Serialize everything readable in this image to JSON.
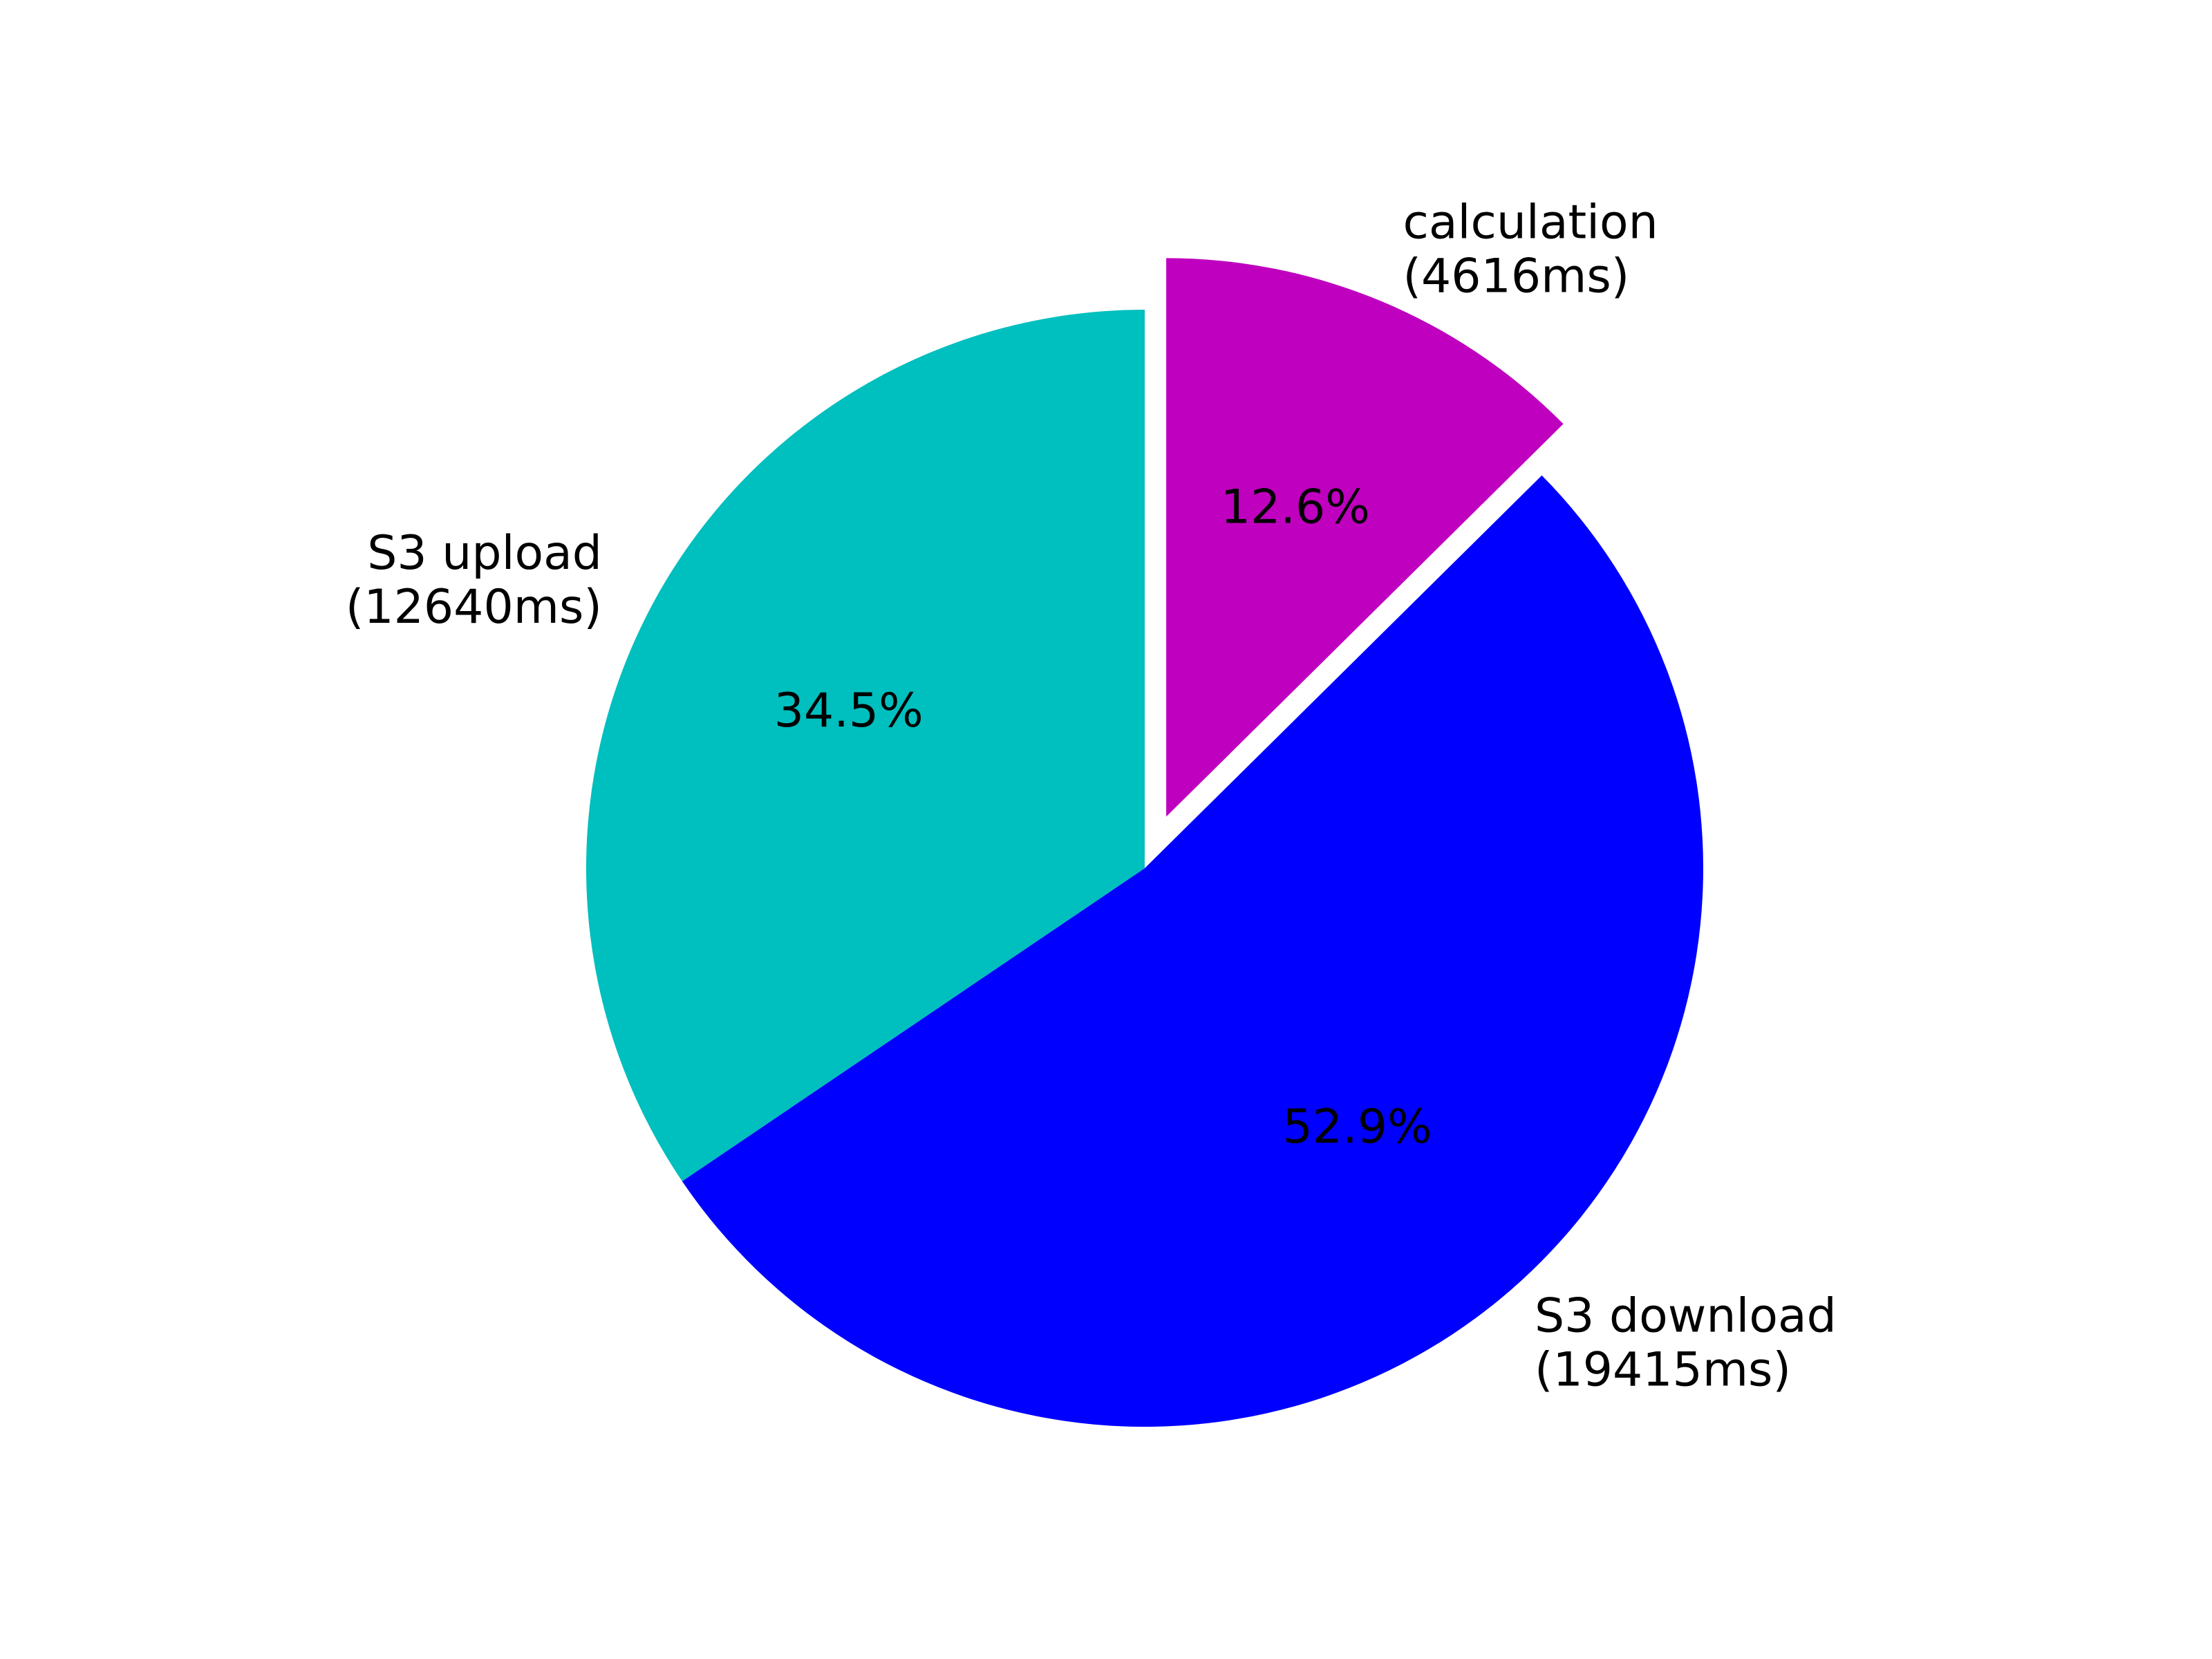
{
  "chart_data": {
    "type": "pie",
    "title": "",
    "slices": [
      {
        "label": "calculation",
        "detail": "(4616ms)",
        "value": 4616,
        "percent": "12.6%",
        "color": "#bf00bf",
        "exploded": true
      },
      {
        "label": "S3 download",
        "detail": "(19415ms)",
        "value": 19415,
        "percent": "52.9%",
        "color": "#0000ff",
        "exploded": false
      },
      {
        "label": "S3 upload",
        "detail": "(12640ms)",
        "value": 12640,
        "percent": "34.5%",
        "color": "#00bfbf",
        "exploded": false
      }
    ],
    "start_angle_deg": 90,
    "direction": "clockwise",
    "legend": "none"
  }
}
